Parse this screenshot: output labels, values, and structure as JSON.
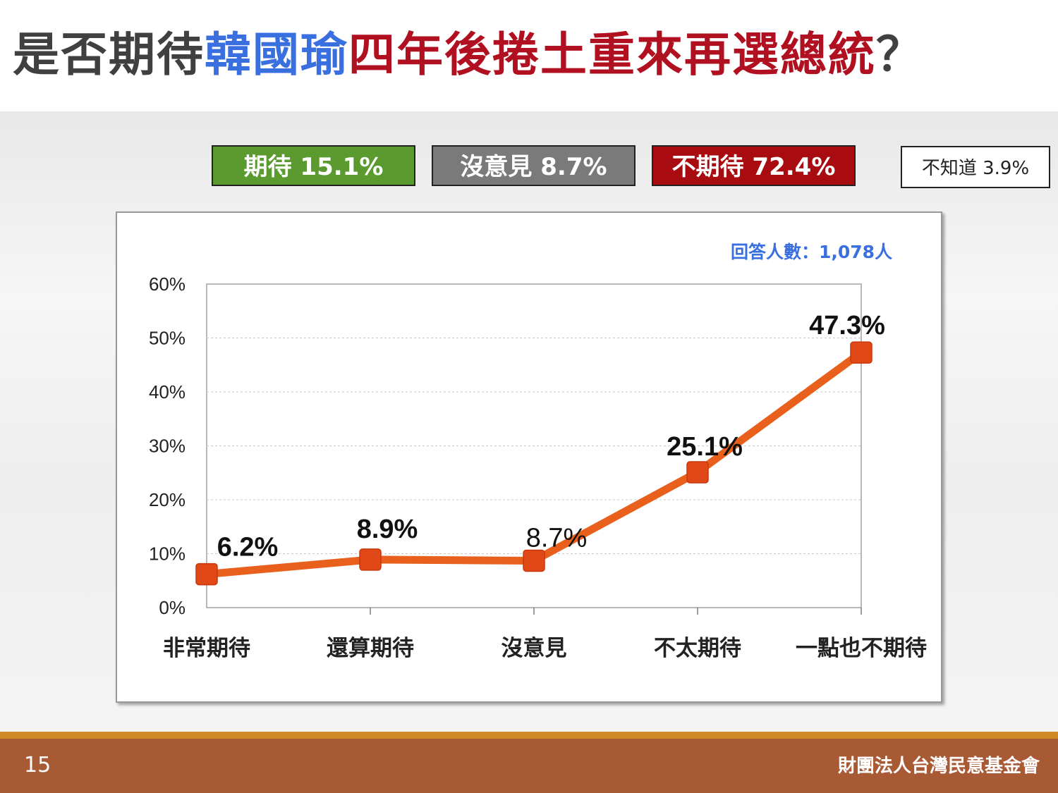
{
  "title": {
    "part1": "是否期待",
    "part2": "韓國瑜",
    "part3": "四年後捲土重來再選總統",
    "part4": "？"
  },
  "legend_boxes": [
    {
      "label": "期待 15.1%",
      "color": "#5a9a2e"
    },
    {
      "label": "沒意見 8.7%",
      "color": "#7a7a7a"
    },
    {
      "label": "不期待 72.4%",
      "color": "#a80c10"
    },
    {
      "label": "不知道 3.9%",
      "color": "#ffffff"
    }
  ],
  "respondents": "回答人數：1,078人",
  "chart_data": {
    "type": "line",
    "categories": [
      "非常期待",
      "還算期待",
      "沒意見",
      "不太期待",
      "一點也不期待"
    ],
    "series": [
      {
        "values": [
          6.2,
          8.9,
          8.7,
          25.1,
          47.3
        ],
        "color": "#e8601c",
        "marker_color": "#e04818"
      }
    ],
    "data_labels": [
      "6.2%",
      "8.9%",
      "8.7%",
      "25.1%",
      "47.3%"
    ],
    "y_ticks": [
      "0%",
      "10%",
      "20%",
      "30%",
      "40%",
      "50%",
      "60%"
    ],
    "ylim": [
      0,
      60
    ],
    "grid": true
  },
  "footer": {
    "page": "15",
    "org": "財團法人台灣民意基金會"
  }
}
